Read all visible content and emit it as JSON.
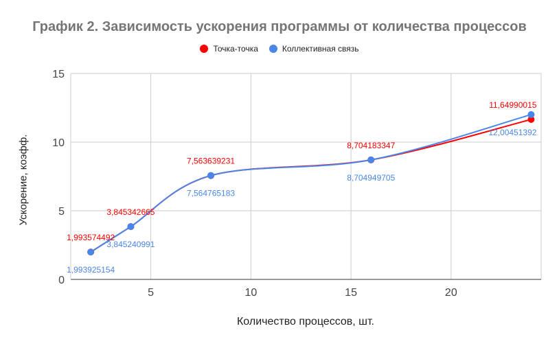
{
  "chart_data": {
    "type": "line",
    "title": "График 2. Зависимость ускорения программы от количества процессов",
    "xlabel": "Количество процессов, шт.",
    "ylabel": "Ускорение, коэфф.",
    "xlim": [
      1.0,
      24.5
    ],
    "ylim": [
      0,
      15
    ],
    "x_ticks": [
      5,
      10,
      15,
      20
    ],
    "y_ticks": [
      0,
      5,
      10,
      15
    ],
    "x_tick_labels": [
      "5",
      "10",
      "15",
      "20"
    ],
    "y_tick_labels": [
      "0",
      "5",
      "10",
      "15"
    ],
    "grid": true,
    "legend_position": "top",
    "x": [
      2,
      4,
      8,
      16,
      24
    ],
    "series": [
      {
        "name": "Точка-точка",
        "color": "#ff0000",
        "values": [
          1.993574492,
          3.845342665,
          7.563639231,
          8.704183347,
          11.64990015
        ],
        "labels": [
          "1,993574492",
          "3,845342665",
          "7,563639231",
          "8,704183347",
          "11,64990015"
        ]
      },
      {
        "name": "Коллективная связь",
        "color": "#4a86e8",
        "values": [
          1.993925154,
          3.845240991,
          7.564765183,
          8.704949705,
          12.00451392
        ],
        "labels": [
          "1,993925154",
          "3,845240991",
          "7,564765183",
          "8,704949705",
          "12,00451392"
        ]
      }
    ]
  }
}
